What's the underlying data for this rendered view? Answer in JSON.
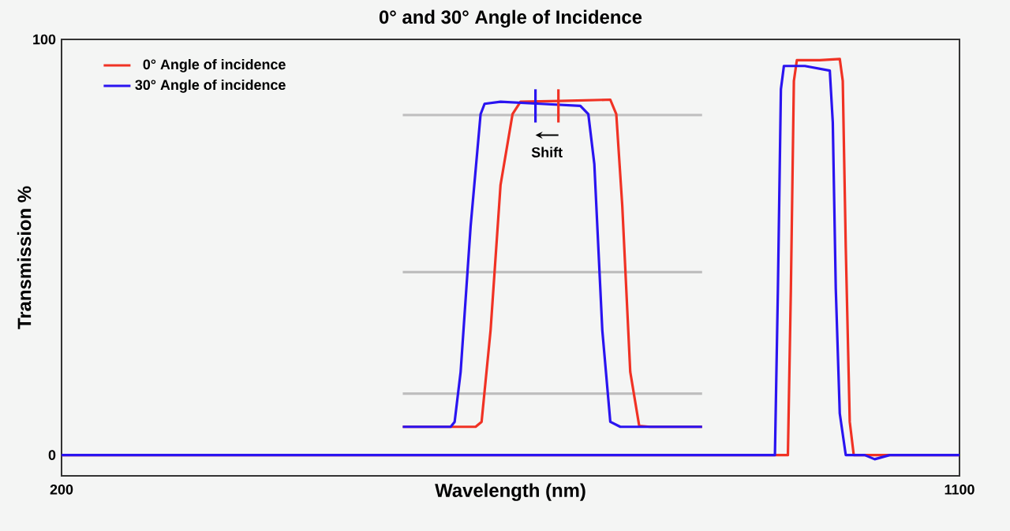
{
  "chart_data": {
    "type": "line",
    "title": "0° and 30° Angle of Incidence",
    "xlabel": "Wavelength (nm)",
    "ylabel": "Transmission %",
    "xlim": [
      200,
      1100
    ],
    "ylim": [
      -5,
      100
    ],
    "xticks": [
      200,
      1100
    ],
    "yticks": [
      0,
      100
    ],
    "grid": false,
    "legend": "top left",
    "marker": "none",
    "line_style": "solid",
    "series": [
      {
        "name": "0° Angle of incidence",
        "color": "#f03224",
        "x": [
          200,
          928,
          931,
          934,
          937,
          960,
          980,
          983,
          986,
          990,
          994,
          1000,
          1100
        ],
        "values": [
          0,
          0,
          40,
          90,
          95,
          95,
          95.3,
          90,
          50,
          8,
          0,
          0,
          0
        ]
      },
      {
        "name": "30° Angle of incidence",
        "color": "#2a14f0",
        "x": [
          200,
          915,
          918,
          921,
          924,
          945,
          970,
          973,
          976,
          980,
          986,
          1005,
          1015,
          1030,
          1100
        ],
        "values": [
          0,
          0,
          40,
          88,
          93.6,
          93.6,
          92.5,
          80,
          40,
          10,
          0,
          0,
          -1,
          0,
          0
        ]
      },
      {
        "color": "#bebebe",
        "x": [
          542,
          842
        ],
        "values": [
          81.8,
          81.8
        ]
      },
      {
        "color": "#bebebe",
        "x": [
          542,
          842
        ],
        "values": [
          44,
          44
        ]
      },
      {
        "color": "#bebebe",
        "x": [
          542,
          842
        ],
        "values": [
          14.8,
          14.8
        ]
      },
      {
        "color": "#f03224",
        "x": [
          542,
          615,
          621,
          630,
          640,
          652,
          660,
          700,
          750,
          756,
          762,
          770,
          779,
          790,
          842
        ],
        "values": [
          6.8,
          6.8,
          8,
          30,
          65,
          82,
          85,
          85.2,
          85.5,
          82,
          60,
          20,
          7,
          6.8,
          6.8
        ]
      },
      {
        "color": "#2a14f0",
        "x": [
          542,
          590,
          594,
          600,
          610,
          620,
          624,
          640,
          680,
          720,
          728,
          734,
          742,
          750,
          760,
          800,
          842
        ],
        "values": [
          6.8,
          6.8,
          8,
          20,
          55,
          82,
          84.5,
          85,
          84.5,
          84,
          82,
          70,
          30,
          8,
          6.8,
          6.8,
          6.8
        ]
      },
      {
        "color": "#2a14f0",
        "x": [
          675,
          675
        ],
        "values": [
          80,
          88
        ]
      },
      {
        "color": "#f03224",
        "x": [
          698,
          698
        ],
        "values": [
          80,
          88
        ]
      }
    ],
    "annotations": [
      "Shift"
    ]
  }
}
